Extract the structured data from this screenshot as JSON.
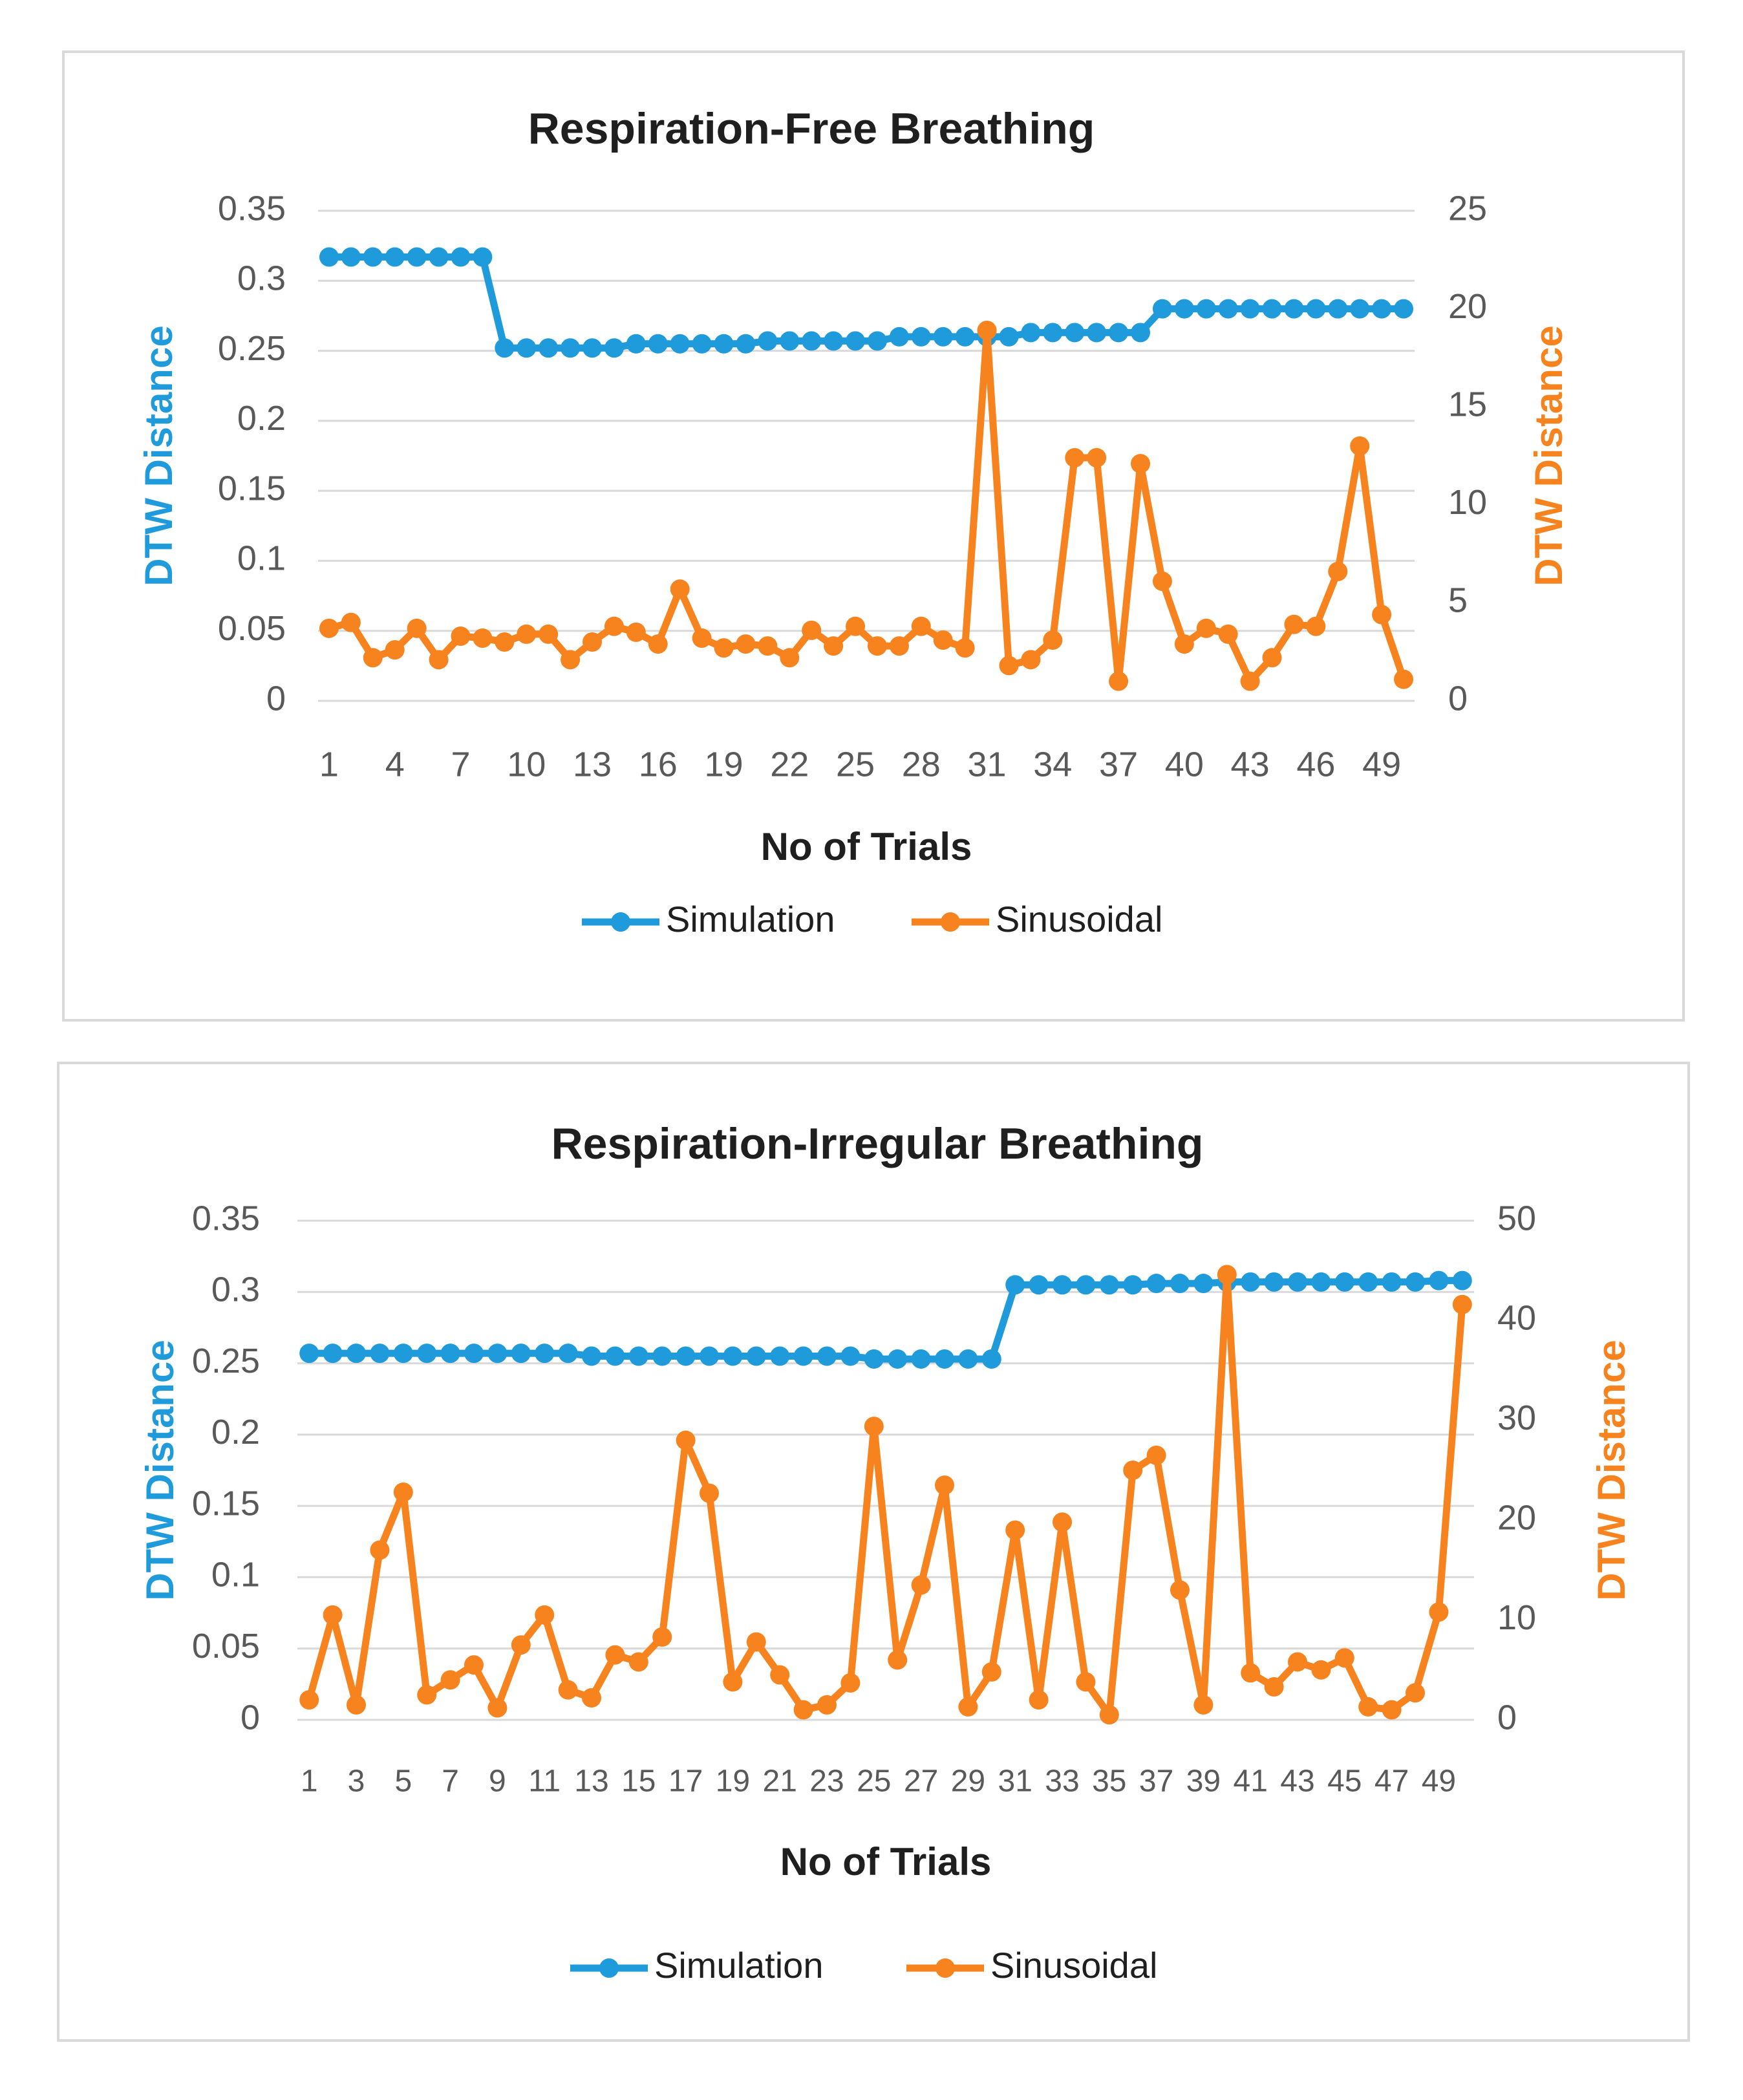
{
  "chart_data": [
    {
      "type": "line",
      "title": "Respiration-Free Breathing",
      "xlabel": "No of Trials",
      "ylabel_left": "DTW Distance",
      "ylabel_right": "DTW Distance",
      "x_ticks": [
        "1",
        "4",
        "7",
        "10",
        "13",
        "16",
        "19",
        "22",
        "25",
        "28",
        "31",
        "34",
        "37",
        "40",
        "43",
        "46",
        "49"
      ],
      "y_left_ticks": [
        "0",
        "0.05",
        "0.1",
        "0.15",
        "0.2",
        "0.25",
        "0.3",
        "0.35"
      ],
      "y_right_ticks": [
        "0",
        "5",
        "10",
        "15",
        "20",
        "25"
      ],
      "ylim_left": [
        0,
        0.35
      ],
      "ylim_right": [
        0,
        25
      ],
      "legend_position": "bottom",
      "gridlines": true,
      "series": [
        {
          "name": "Simulation",
          "axis": "left",
          "color": "#1f9bdc",
          "values": [
            0.317,
            0.317,
            0.317,
            0.317,
            0.317,
            0.317,
            0.317,
            0.317,
            0.252,
            0.252,
            0.252,
            0.252,
            0.252,
            0.252,
            0.255,
            0.255,
            0.255,
            0.255,
            0.255,
            0.255,
            0.257,
            0.257,
            0.257,
            0.257,
            0.257,
            0.257,
            0.26,
            0.26,
            0.26,
            0.26,
            0.26,
            0.26,
            0.263,
            0.263,
            0.263,
            0.263,
            0.263,
            0.263,
            0.28,
            0.28,
            0.28,
            0.28,
            0.28,
            0.28,
            0.28,
            0.28,
            0.28,
            0.28,
            0.28,
            0.28
          ]
        },
        {
          "name": "Sinusoidal",
          "axis": "right",
          "color": "#f7831f",
          "values": [
            3.7,
            4.0,
            2.2,
            2.6,
            3.7,
            2.1,
            3.3,
            3.2,
            3.0,
            3.4,
            3.4,
            2.1,
            3.0,
            3.8,
            3.5,
            2.9,
            5.7,
            3.2,
            2.7,
            2.9,
            2.8,
            2.2,
            3.6,
            2.8,
            3.8,
            2.8,
            2.8,
            3.8,
            3.1,
            2.7,
            18.9,
            1.8,
            2.1,
            3.1,
            12.4,
            12.4,
            1.0,
            12.1,
            6.1,
            2.9,
            3.7,
            3.4,
            1.0,
            2.2,
            3.9,
            3.8,
            6.6,
            13.0,
            4.4,
            1.1
          ]
        }
      ]
    },
    {
      "type": "line",
      "title": "Respiration-Irregular Breathing",
      "xlabel": "No of Trials",
      "ylabel_left": "DTW Distance",
      "ylabel_right": "DTW Distance",
      "x_ticks": [
        "1",
        "3",
        "5",
        "7",
        "9",
        "11",
        "13",
        "15",
        "17",
        "19",
        "21",
        "23",
        "25",
        "27",
        "29",
        "31",
        "33",
        "35",
        "37",
        "39",
        "41",
        "43",
        "45",
        "47",
        "49"
      ],
      "y_left_ticks": [
        "0",
        "0.05",
        "0.1",
        "0.15",
        "0.2",
        "0.25",
        "0.3",
        "0.35"
      ],
      "y_right_ticks": [
        "0",
        "10",
        "20",
        "30",
        "40",
        "50"
      ],
      "ylim_left": [
        0,
        0.35
      ],
      "ylim_right": [
        0,
        50
      ],
      "legend_position": "bottom",
      "gridlines": true,
      "series": [
        {
          "name": "Simulation",
          "axis": "left",
          "color": "#1f9bdc",
          "values": [
            0.257,
            0.257,
            0.257,
            0.257,
            0.257,
            0.257,
            0.257,
            0.257,
            0.257,
            0.257,
            0.257,
            0.257,
            0.255,
            0.255,
            0.255,
            0.255,
            0.255,
            0.255,
            0.255,
            0.255,
            0.255,
            0.255,
            0.255,
            0.255,
            0.253,
            0.253,
            0.253,
            0.253,
            0.253,
            0.253,
            0.305,
            0.305,
            0.305,
            0.305,
            0.305,
            0.305,
            0.306,
            0.306,
            0.306,
            0.307,
            0.307,
            0.307,
            0.307,
            0.307,
            0.307,
            0.307,
            0.307,
            0.307,
            0.308,
            0.308
          ]
        },
        {
          "name": "Sinusoidal",
          "axis": "right",
          "color": "#f7831f",
          "values": [
            2.0,
            10.5,
            1.5,
            17.0,
            22.8,
            2.5,
            4.0,
            5.5,
            1.2,
            7.5,
            10.5,
            3.0,
            2.2,
            6.5,
            5.8,
            8.3,
            28.0,
            22.7,
            3.8,
            7.8,
            4.5,
            1.0,
            1.5,
            3.7,
            29.4,
            6.0,
            13.5,
            23.5,
            1.3,
            4.8,
            19.0,
            2.0,
            19.8,
            3.8,
            0.5,
            25.0,
            26.5,
            13.0,
            1.5,
            44.6,
            4.7,
            3.3,
            5.8,
            5.0,
            6.2,
            1.3,
            1.0,
            2.7,
            10.8,
            41.6
          ]
        }
      ]
    }
  ]
}
